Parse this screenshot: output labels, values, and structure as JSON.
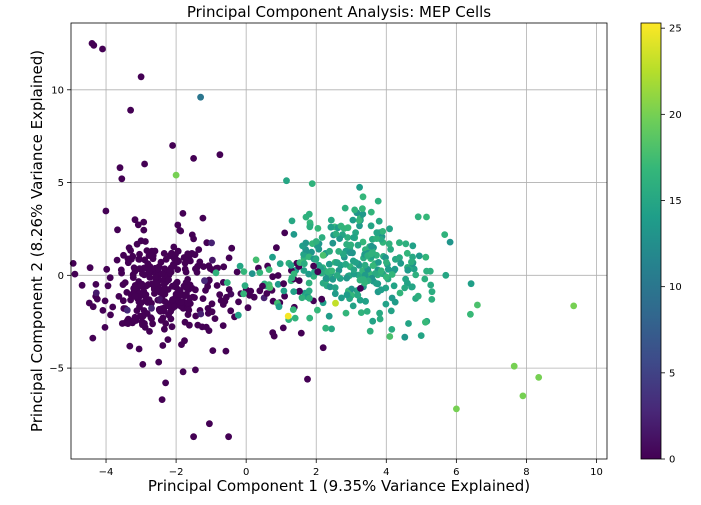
{
  "chart_data": {
    "type": "scatter",
    "title": "Principal Component Analysis: MEP Cells",
    "xlabel": "Principal Component 1 (9.35% Variance Explained)",
    "ylabel": "Principal Component 2 (8.26% Variance Explained)",
    "xlim": [
      -5,
      10.3
    ],
    "ylim": [
      -9.9,
      13.6
    ],
    "xticks": [
      -4,
      -2,
      0,
      2,
      4,
      6,
      8,
      10
    ],
    "yticks": [
      -5,
      0,
      5,
      10
    ],
    "grid": true,
    "colormap": "viridis",
    "colorbar": {
      "min": 0,
      "max": 25.3,
      "ticks": [
        0,
        5,
        10,
        15,
        20,
        25
      ]
    },
    "points": [
      {
        "x": -4.4,
        "y": 12.5,
        "c": 0
      },
      {
        "x": -4.35,
        "y": 12.4,
        "c": 0
      },
      {
        "x": -4.1,
        "y": 12.2,
        "c": 0
      },
      {
        "x": -3.0,
        "y": 10.7,
        "c": 0
      },
      {
        "x": -1.3,
        "y": 9.6,
        "c": 10
      },
      {
        "x": -3.3,
        "y": 8.9,
        "c": 0
      },
      {
        "x": -2.1,
        "y": 7.0,
        "c": 0
      },
      {
        "x": -1.5,
        "y": 6.3,
        "c": 0
      },
      {
        "x": -0.75,
        "y": 6.5,
        "c": 0
      },
      {
        "x": -2.9,
        "y": 6.0,
        "c": 0
      },
      {
        "x": -3.6,
        "y": 5.8,
        "c": 0
      },
      {
        "x": -3.55,
        "y": 5.2,
        "c": 0
      },
      {
        "x": -2.0,
        "y": 5.4,
        "c": 20
      },
      {
        "x": 1.15,
        "y": 5.1,
        "c": 15
      },
      {
        "x": -2.95,
        "y": -4.8,
        "c": 0
      },
      {
        "x": -2.3,
        "y": -5.8,
        "c": 0
      },
      {
        "x": -2.4,
        "y": -6.7,
        "c": 0
      },
      {
        "x": -1.8,
        "y": -5.2,
        "c": 0
      },
      {
        "x": -1.45,
        "y": -5.1,
        "c": 0
      },
      {
        "x": -1.05,
        "y": -8.0,
        "c": 0
      },
      {
        "x": -1.5,
        "y": -8.7,
        "c": 0
      },
      {
        "x": -0.5,
        "y": -8.7,
        "c": 0
      },
      {
        "x": 1.75,
        "y": -5.6,
        "c": 0
      },
      {
        "x": 2.2,
        "y": -3.9,
        "c": 0
      },
      {
        "x": 1.2,
        "y": -2.2,
        "c": 25
      },
      {
        "x": 2.55,
        "y": -1.5,
        "c": 23
      },
      {
        "x": 4.1,
        "y": -3.3,
        "c": 18
      },
      {
        "x": 5.1,
        "y": -0.2,
        "c": 16
      },
      {
        "x": 5.3,
        "y": -1.3,
        "c": 16
      },
      {
        "x": 6.4,
        "y": -2.1,
        "c": 17
      },
      {
        "x": 6.6,
        "y": -1.6,
        "c": 18
      },
      {
        "x": 7.65,
        "y": -4.9,
        "c": 20
      },
      {
        "x": 8.35,
        "y": -5.5,
        "c": 20
      },
      {
        "x": 7.9,
        "y": -6.5,
        "c": 20
      },
      {
        "x": 6.0,
        "y": -7.2,
        "c": 20
      },
      {
        "x": 9.35,
        "y": -1.65,
        "c": 20
      },
      {
        "x": 5.7,
        "y": 0.0,
        "c": 15
      }
    ],
    "clusters": [
      {
        "cx": -2.4,
        "cy": -0.6,
        "sx": 0.9,
        "sy": 1.4,
        "n": 330,
        "c": 0,
        "seed": 11
      },
      {
        "cx": 3.2,
        "cy": 0.5,
        "sx": 1.0,
        "sy": 1.5,
        "n": 260,
        "c": 15,
        "seed": 29
      },
      {
        "cx": 0.7,
        "cy": -0.3,
        "sx": 0.8,
        "sy": 1.2,
        "n": 40,
        "c": 0,
        "seed": 47
      },
      {
        "cx": 0.9,
        "cy": 0.0,
        "sx": 0.8,
        "sy": 1.3,
        "n": 35,
        "c": 16,
        "seed": 53
      }
    ]
  }
}
